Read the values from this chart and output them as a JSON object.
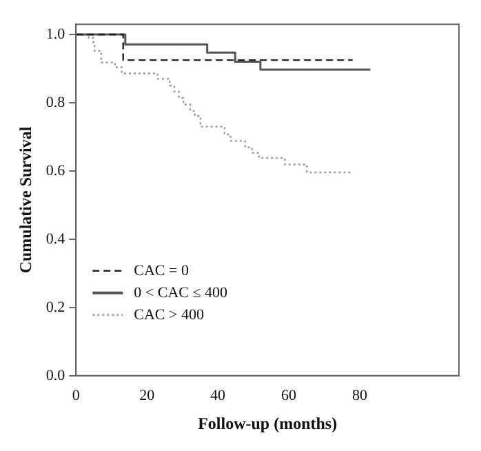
{
  "chart_data": {
    "type": "step",
    "xlabel": "Follow-up (months)",
    "ylabel": "Cumulative Survival",
    "xlim": [
      0,
      108
    ],
    "xticks": [
      0,
      20,
      40,
      60,
      80
    ],
    "ylim": [
      0,
      1.03
    ],
    "yticks": [
      {
        "value": 0,
        "label": "0.0"
      },
      {
        "value": 0.2,
        "label": "0.2"
      },
      {
        "value": 0.4,
        "label": "0.4"
      },
      {
        "value": 0.6,
        "label": "0.6"
      },
      {
        "value": 0.8,
        "label": "0.8"
      },
      {
        "value": 1,
        "label": "1.0"
      }
    ],
    "grid": false,
    "legend": "bottom left",
    "marker": "none",
    "series": [
      {
        "name": "CAC = 0",
        "color": "#222222",
        "line_style": "dashed",
        "x": [
          0,
          13.3,
          78
        ],
        "values": [
          1,
          0.925,
          0.925
        ]
      },
      {
        "name": "0 < CAC ≤ 400",
        "color": "#555555",
        "line_style": "solid",
        "x": [
          0,
          13.9,
          37,
          44.9,
          52,
          83
        ],
        "values": [
          1,
          0.971,
          0.947,
          0.92,
          0.897,
          0.897
        ]
      },
      {
        "name": "CAC > 400",
        "color": "#999999",
        "line_style": "dotted",
        "x": [
          0,
          3.6,
          4.9,
          5.2,
          7.1,
          11,
          12.9,
          23,
          26.4,
          27.7,
          29,
          30.3,
          32.2,
          33.5,
          35.1,
          41.9,
          43.6,
          47.7,
          49.6,
          51.6,
          58.9,
          65.1,
          77.4
        ],
        "values": [
          1,
          0.99,
          0.971,
          0.952,
          0.918,
          0.904,
          0.886,
          0.87,
          0.85,
          0.833,
          0.814,
          0.795,
          0.776,
          0.761,
          0.73,
          0.707,
          0.688,
          0.669,
          0.653,
          0.638,
          0.619,
          0.596,
          0.596
        ]
      }
    ]
  }
}
